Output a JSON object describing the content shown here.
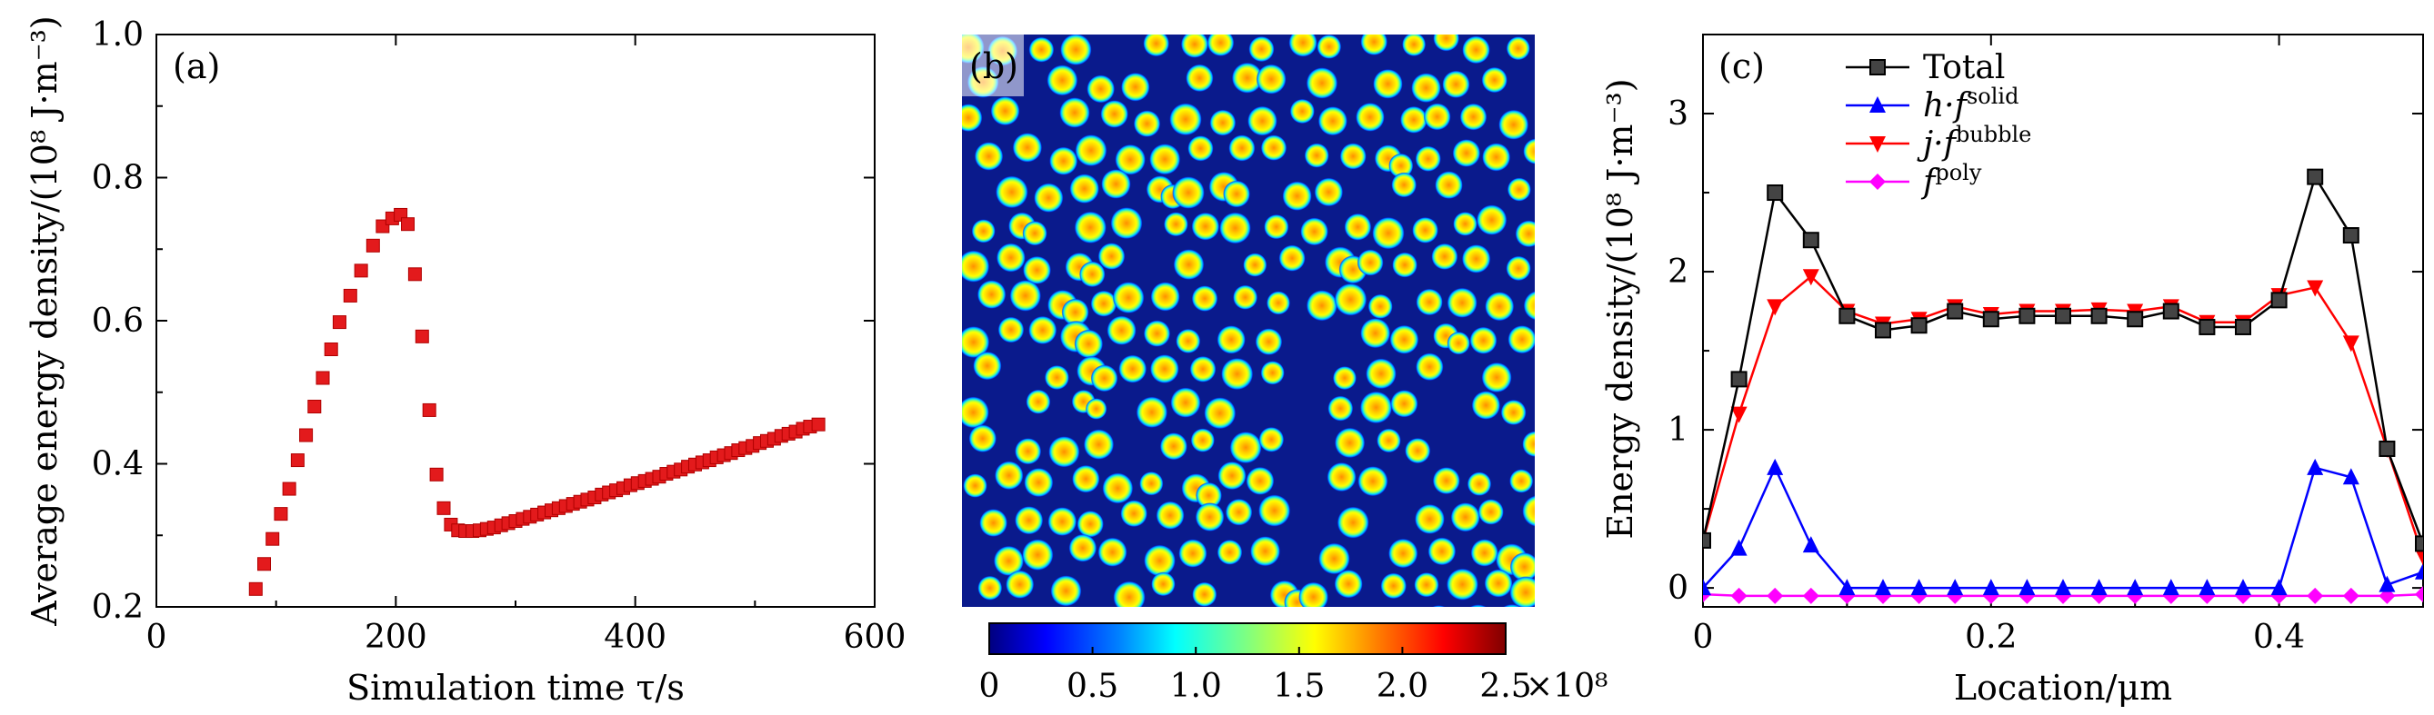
{
  "chart_data": [
    {
      "panel": "(a)",
      "type": "scatter",
      "xlabel": "Simulation time τ/s",
      "ylabel": "Average energy density/(10⁸ J·m⁻³)",
      "xlim": [
        0,
        600
      ],
      "ylim": [
        0.2,
        1.0
      ],
      "xticks": [
        "0",
        "200",
        "400",
        "600"
      ],
      "yticks": [
        "0.2",
        "0.4",
        "0.6",
        "0.8",
        "1.0"
      ],
      "marker_color": "#e31a1c",
      "series": [
        {
          "name": "Average energy density",
          "x": [
            83,
            90,
            97,
            104,
            111,
            118,
            125,
            132,
            139,
            146,
            153,
            162,
            171,
            181,
            189,
            197,
            204,
            210,
            216,
            222,
            228,
            234,
            240,
            246,
            252,
            258,
            264,
            270,
            276,
            282,
            288,
            294,
            300,
            306,
            312,
            318,
            324,
            330,
            336,
            342,
            348,
            354,
            360,
            366,
            372,
            378,
            384,
            390,
            396,
            402,
            408,
            414,
            420,
            426,
            432,
            438,
            444,
            450,
            456,
            462,
            468,
            474,
            480,
            486,
            492,
            498,
            504,
            510,
            516,
            522,
            528,
            534,
            540,
            546,
            553
          ],
          "y": [
            0.225,
            0.26,
            0.295,
            0.33,
            0.365,
            0.405,
            0.44,
            0.48,
            0.52,
            0.56,
            0.598,
            0.635,
            0.67,
            0.705,
            0.732,
            0.743,
            0.748,
            0.735,
            0.665,
            0.578,
            0.475,
            0.385,
            0.338,
            0.315,
            0.307,
            0.306,
            0.306,
            0.307,
            0.309,
            0.311,
            0.314,
            0.317,
            0.32,
            0.323,
            0.326,
            0.329,
            0.332,
            0.335,
            0.338,
            0.341,
            0.344,
            0.347,
            0.35,
            0.353,
            0.357,
            0.36,
            0.363,
            0.366,
            0.37,
            0.373,
            0.376,
            0.379,
            0.382,
            0.386,
            0.389,
            0.392,
            0.396,
            0.399,
            0.402,
            0.405,
            0.409,
            0.412,
            0.415,
            0.419,
            0.422,
            0.425,
            0.429,
            0.432,
            0.435,
            0.439,
            0.442,
            0.445,
            0.449,
            0.452,
            0.455
          ]
        }
      ]
    },
    {
      "panel": "(b)",
      "type": "heatmap",
      "colorbar_ticks": [
        "0",
        "0.5",
        "1.0",
        "1.5",
        "2.0",
        "2.5"
      ],
      "colorbar_range": [
        0,
        2.5
      ],
      "colorbar_exponent": "×10⁸",
      "colormap": [
        "#00007f",
        "#0000ff",
        "#0080ff",
        "#00ffff",
        "#80ff80",
        "#ffff00",
        "#ff8000",
        "#ff0000",
        "#7f0000"
      ]
    },
    {
      "panel": "(c)",
      "type": "line",
      "xlabel": "Location/μm",
      "ylabel": "Energy density/(10⁸ J·m⁻³)",
      "xlim": [
        0,
        0.5
      ],
      "ylim": [
        -0.12,
        3.5
      ],
      "xticks": [
        "0",
        "0.2",
        "0.4"
      ],
      "yticks": [
        "0",
        "1",
        "2",
        "3"
      ],
      "x": [
        0,
        0.025,
        0.05,
        0.075,
        0.1,
        0.125,
        0.15,
        0.175,
        0.2,
        0.225,
        0.25,
        0.275,
        0.3,
        0.325,
        0.35,
        0.375,
        0.4,
        0.425,
        0.45,
        0.475,
        0.5
      ],
      "series": [
        {
          "name": "Total",
          "color": "#000000",
          "marker": "square",
          "values": [
            0.3,
            1.32,
            2.5,
            2.2,
            1.72,
            1.63,
            1.66,
            1.75,
            1.7,
            1.72,
            1.72,
            1.72,
            1.7,
            1.75,
            1.65,
            1.65,
            1.82,
            2.6,
            2.23,
            0.88,
            0.28
          ]
        },
        {
          "name": "h·f solid",
          "color": "#0000ff",
          "marker": "triangle-up",
          "values": [
            0.0,
            0.25,
            0.76,
            0.27,
            0.0,
            0.0,
            0.0,
            0.0,
            0.0,
            0.0,
            0.0,
            0.0,
            0.0,
            0.0,
            0.0,
            0.0,
            0.0,
            0.76,
            0.7,
            0.02,
            0.1
          ]
        },
        {
          "name": "j·f bubble",
          "color": "#ff0000",
          "marker": "triangle-down",
          "values": [
            0.3,
            1.1,
            1.78,
            1.97,
            1.75,
            1.67,
            1.7,
            1.78,
            1.73,
            1.75,
            1.75,
            1.76,
            1.75,
            1.78,
            1.68,
            1.68,
            1.85,
            1.9,
            1.55,
            0.88,
            0.2
          ]
        },
        {
          "name": "f poly",
          "color": "#ff00ff",
          "marker": "diamond",
          "values": [
            -0.04,
            -0.05,
            -0.05,
            -0.05,
            -0.05,
            -0.05,
            -0.05,
            -0.05,
            -0.05,
            -0.05,
            -0.05,
            -0.05,
            -0.05,
            -0.05,
            -0.05,
            -0.05,
            -0.05,
            -0.05,
            -0.05,
            -0.05,
            -0.04
          ]
        }
      ],
      "legend": {
        "placement": "top-left",
        "items": [
          {
            "base": "Total",
            "sup": ""
          },
          {
            "base": "h·f",
            "sup": "solid"
          },
          {
            "base": "j·f",
            "sup": "bubble"
          },
          {
            "base": "f",
            "sup": "poly"
          }
        ]
      }
    }
  ]
}
